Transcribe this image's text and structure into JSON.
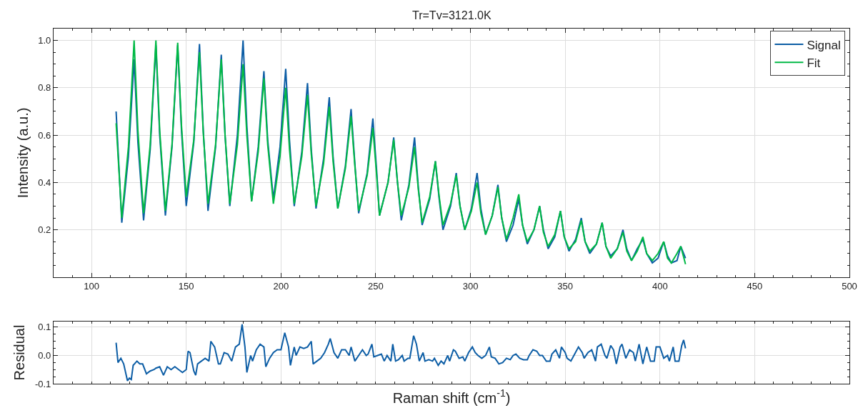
{
  "chart_data": [
    {
      "type": "line",
      "title": "Tr=Tv=3121.0K",
      "ylabel": "Intensity (a.u.)",
      "xlim": [
        80,
        500
      ],
      "xticks": [
        100,
        150,
        200,
        250,
        300,
        350,
        400,
        450,
        500
      ],
      "ylim": [
        0.0,
        1.05
      ],
      "yticks": [
        {
          "value": 0.2,
          "label": "0.2"
        },
        {
          "value": 0.4,
          "label": "0.4"
        },
        {
          "value": 0.6,
          "label": "0.6"
        },
        {
          "value": 0.8,
          "label": "0.8"
        },
        {
          "value": 1.0,
          "label": "1.0"
        }
      ],
      "grid": true,
      "legend": "top right",
      "marker": "none",
      "line_style": "solid",
      "x": [
        113,
        116,
        119.5,
        122.5,
        124.5,
        127.5,
        131,
        134,
        136,
        139,
        142.5,
        145.5,
        147.5,
        150,
        154,
        157,
        159,
        161.5,
        165.5,
        168.5,
        170.5,
        173,
        177,
        180,
        182,
        184.5,
        188,
        191,
        193,
        196,
        199.5,
        202.5,
        204.5,
        207,
        211,
        214,
        216,
        218.5,
        222.5,
        225.5,
        227.5,
        230,
        234,
        237,
        239,
        241,
        245.5,
        248.5,
        250.5,
        252,
        256.5,
        259.5,
        261.5,
        263.5,
        267.5,
        270.5,
        272.5,
        274.5,
        278.5,
        281.5,
        283.5,
        285.5,
        289.5,
        292.5,
        294.5,
        297,
        300.5,
        303.5,
        305.5,
        308,
        311.5,
        314.5,
        316.5,
        319,
        322.5,
        325.5,
        327.5,
        330,
        333.5,
        336.5,
        338.5,
        341,
        344.5,
        347.5,
        349.5,
        352,
        355.5,
        358.5,
        360.5,
        363,
        366.5,
        369.5,
        371.5,
        374,
        377.5,
        380.5,
        382.5,
        385,
        388,
        391,
        393,
        396,
        399,
        402,
        404,
        406,
        409,
        411,
        413.5
      ],
      "series": [
        {
          "name": "Signal",
          "color": "#0c5da5",
          "values": [
            0.7,
            0.23,
            0.51,
            0.92,
            0.57,
            0.24,
            0.54,
            0.98,
            0.6,
            0.26,
            0.55,
            0.98,
            0.62,
            0.3,
            0.57,
            0.985,
            0.62,
            0.28,
            0.55,
            0.94,
            0.6,
            0.3,
            0.6,
            1.0,
            0.64,
            0.32,
            0.55,
            0.87,
            0.58,
            0.33,
            0.55,
            0.88,
            0.58,
            0.3,
            0.53,
            0.82,
            0.54,
            0.29,
            0.5,
            0.76,
            0.51,
            0.29,
            0.47,
            0.71,
            0.48,
            0.27,
            0.44,
            0.67,
            0.45,
            0.26,
            0.4,
            0.59,
            0.4,
            0.24,
            0.39,
            0.59,
            0.38,
            0.22,
            0.33,
            0.49,
            0.33,
            0.2,
            0.3,
            0.44,
            0.3,
            0.2,
            0.29,
            0.44,
            0.29,
            0.18,
            0.26,
            0.39,
            0.25,
            0.15,
            0.22,
            0.33,
            0.22,
            0.14,
            0.2,
            0.3,
            0.2,
            0.12,
            0.17,
            0.28,
            0.17,
            0.11,
            0.16,
            0.25,
            0.15,
            0.1,
            0.14,
            0.23,
            0.13,
            0.09,
            0.12,
            0.2,
            0.12,
            0.07,
            0.12,
            0.16,
            0.1,
            0.06,
            0.08,
            0.15,
            0.09,
            0.06,
            0.07,
            0.13,
            0.08
          ]
        },
        {
          "name": "Fit",
          "color": "#00b945",
          "values": [
            0.65,
            0.25,
            0.55,
            1.0,
            0.62,
            0.27,
            0.56,
            1.0,
            0.62,
            0.28,
            0.56,
            0.99,
            0.64,
            0.34,
            0.58,
            0.95,
            0.61,
            0.31,
            0.56,
            0.92,
            0.6,
            0.31,
            0.56,
            0.9,
            0.6,
            0.32,
            0.53,
            0.84,
            0.56,
            0.31,
            0.51,
            0.8,
            0.54,
            0.31,
            0.51,
            0.77,
            0.52,
            0.3,
            0.48,
            0.72,
            0.49,
            0.29,
            0.46,
            0.68,
            0.47,
            0.28,
            0.43,
            0.63,
            0.43,
            0.26,
            0.4,
            0.58,
            0.4,
            0.26,
            0.38,
            0.55,
            0.37,
            0.23,
            0.34,
            0.49,
            0.34,
            0.22,
            0.31,
            0.43,
            0.3,
            0.2,
            0.28,
            0.4,
            0.27,
            0.18,
            0.26,
            0.38,
            0.25,
            0.16,
            0.25,
            0.35,
            0.22,
            0.15,
            0.2,
            0.3,
            0.19,
            0.13,
            0.18,
            0.28,
            0.17,
            0.12,
            0.15,
            0.24,
            0.15,
            0.11,
            0.14,
            0.23,
            0.13,
            0.08,
            0.12,
            0.19,
            0.11,
            0.07,
            0.11,
            0.17,
            0.1,
            0.07,
            0.1,
            0.15,
            0.08,
            0.06,
            0.1,
            0.13,
            0.055
          ]
        }
      ]
    },
    {
      "type": "line",
      "ylabel": "Residual",
      "xlabel": "Raman shift (cm$^{-1}$)",
      "xlim": [
        80,
        500
      ],
      "xticks": [
        {
          "value": 100,
          "label": null
        },
        {
          "value": 150,
          "label": null
        },
        {
          "value": 200,
          "label": null
        },
        {
          "value": 250,
          "label": null
        },
        {
          "value": 300,
          "label": null
        },
        {
          "value": 350,
          "label": null
        },
        {
          "value": 400,
          "label": null
        },
        {
          "value": 450,
          "label": null
        },
        {
          "value": 500,
          "label": null
        }
      ],
      "ylim": [
        -0.1,
        0.12
      ],
      "yticks": [
        {
          "value": -0.1,
          "label": "-0.1"
        },
        {
          "value": 0.0,
          "label": "0.0"
        },
        {
          "value": 0.1,
          "label": "0.1"
        }
      ],
      "grid": true,
      "tick_labels": "y",
      "marker": "none",
      "line_style": "solid",
      "x": [
        113,
        114,
        115.5,
        117,
        119,
        120,
        121,
        122,
        124,
        125.5,
        127,
        129,
        131,
        133,
        134,
        136,
        138,
        140,
        142,
        144,
        146,
        148,
        150,
        151,
        152,
        154,
        155,
        156,
        158,
        160,
        162,
        163,
        165,
        167,
        168,
        170,
        172,
        174,
        176,
        178,
        179.5,
        181,
        182,
        184,
        185,
        187,
        189,
        191,
        192,
        194,
        196,
        198,
        200,
        202,
        204,
        205,
        207,
        208,
        210,
        212,
        214,
        216,
        217,
        219,
        221,
        223,
        225,
        226,
        228,
        230,
        232,
        234,
        236,
        237,
        239,
        241,
        243,
        245,
        246,
        248,
        249,
        251,
        253,
        254.5,
        256,
        258,
        259,
        260.5,
        262,
        264,
        265,
        267,
        268,
        270,
        271.5,
        273,
        275,
        276,
        278,
        280,
        281,
        283,
        284.5,
        286,
        288,
        289,
        291,
        292,
        294,
        296,
        297,
        299,
        301,
        302.5,
        304,
        306,
        308,
        310,
        311,
        313,
        315,
        317,
        319,
        321,
        322.5,
        324,
        326,
        328,
        330,
        331,
        333,
        335,
        336.5,
        338,
        340,
        342,
        343,
        345,
        347,
        348,
        350,
        351,
        353,
        355,
        357,
        359,
        360,
        362,
        364,
        366,
        367,
        369,
        371,
        372,
        374,
        375.5,
        377,
        379,
        380,
        382,
        384,
        386,
        387,
        389,
        391,
        393,
        395,
        397,
        398,
        400,
        402,
        404,
        405,
        407,
        408,
        410,
        411.5,
        412.5,
        413.5
      ],
      "series": [
        {
          "color": "#0c5da5",
          "values": [
            0.045,
            -0.025,
            -0.01,
            -0.03,
            -0.09,
            -0.08,
            -0.085,
            -0.035,
            -0.02,
            -0.03,
            -0.03,
            -0.065,
            -0.055,
            -0.05,
            -0.045,
            -0.04,
            -0.07,
            -0.04,
            -0.05,
            -0.04,
            -0.05,
            -0.06,
            -0.05,
            0.015,
            0.01,
            -0.055,
            -0.07,
            -0.03,
            -0.02,
            -0.01,
            -0.02,
            0.05,
            0.03,
            -0.03,
            -0.03,
            0.01,
            0.005,
            -0.02,
            0.03,
            0.04,
            0.11,
            0.03,
            -0.06,
            0.0,
            -0.02,
            0.02,
            0.04,
            0.03,
            -0.04,
            -0.01,
            0.01,
            0.02,
            0.02,
            0.08,
            0.03,
            -0.035,
            0.03,
            0.0,
            0.03,
            0.025,
            0.03,
            0.05,
            -0.03,
            -0.02,
            -0.01,
            0.01,
            0.04,
            0.06,
            0.01,
            -0.01,
            0.02,
            0.02,
            0.0,
            0.03,
            -0.02,
            0.0,
            0.02,
            0.0,
            0.005,
            0.04,
            -0.005,
            0.0,
            0.005,
            -0.02,
            0.0,
            -0.02,
            0.04,
            -0.02,
            -0.015,
            0.0,
            -0.02,
            -0.01,
            -0.01,
            0.07,
            0.04,
            -0.02,
            0.01,
            -0.02,
            -0.015,
            -0.02,
            -0.01,
            -0.035,
            -0.02,
            -0.03,
            0.0,
            -0.02,
            0.02,
            0.015,
            -0.01,
            -0.005,
            -0.02,
            0.01,
            0.03,
            0.01,
            0.0,
            -0.01,
            0.0,
            0.03,
            -0.005,
            -0.01,
            -0.03,
            -0.025,
            -0.01,
            -0.015,
            0.0,
            0.005,
            -0.01,
            -0.015,
            -0.015,
            0.0,
            0.02,
            0.015,
            0.0,
            0.0,
            -0.02,
            -0.02,
            0.005,
            0.02,
            -0.01,
            0.03,
            0.01,
            -0.01,
            -0.02,
            0.005,
            0.03,
            0.01,
            -0.01,
            0.01,
            0.02,
            -0.02,
            0.03,
            0.04,
            0.0,
            -0.01,
            0.035,
            0.02,
            -0.03,
            0.03,
            0.04,
            -0.01,
            0.02,
            0.01,
            -0.02,
            0.04,
            -0.03,
            0.03,
            -0.02,
            -0.02,
            0.03,
            0.03,
            -0.01,
            0.0,
            -0.02,
            0.03,
            -0.02,
            -0.02,
            0.035,
            0.055,
            0.025
          ]
        }
      ]
    }
  ]
}
